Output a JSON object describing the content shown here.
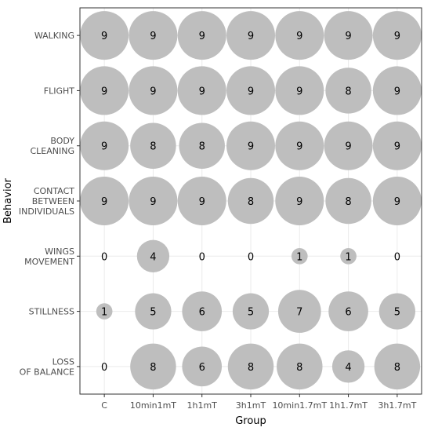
{
  "chart_data": {
    "type": "bubble",
    "xlabel": "Group",
    "ylabel": "Behavior",
    "groups": [
      "C",
      "10min1mT",
      "1h1mT",
      "3h1mT",
      "10min1.7mT",
      "1h1.7mT",
      "3h1.7mT"
    ],
    "behaviors": [
      {
        "label": [
          "WALKING"
        ],
        "values": [
          9,
          9,
          9,
          9,
          9,
          9,
          9
        ]
      },
      {
        "label": [
          "FLIGHT"
        ],
        "values": [
          9,
          9,
          9,
          9,
          9,
          8,
          9
        ]
      },
      {
        "label": [
          "BODY",
          "CLEANING"
        ],
        "values": [
          9,
          8,
          8,
          9,
          9,
          9,
          9
        ]
      },
      {
        "label": [
          "CONTACT",
          "BETWEEN",
          "INDIVIDUALS"
        ],
        "values": [
          9,
          9,
          9,
          8,
          9,
          8,
          9
        ]
      },
      {
        "label": [
          "WINGS",
          "MOVEMENT"
        ],
        "values": [
          0,
          4,
          0,
          0,
          1,
          1,
          0
        ]
      },
      {
        "label": [
          "STILLNESS"
        ],
        "values": [
          1,
          5,
          6,
          5,
          7,
          6,
          5
        ]
      },
      {
        "label": [
          "LOSS",
          "OF BALANCE"
        ],
        "values": [
          0,
          8,
          6,
          8,
          8,
          4,
          8
        ]
      }
    ],
    "max_value": 9,
    "bubble_color": "#bebebe",
    "grid": true
  }
}
